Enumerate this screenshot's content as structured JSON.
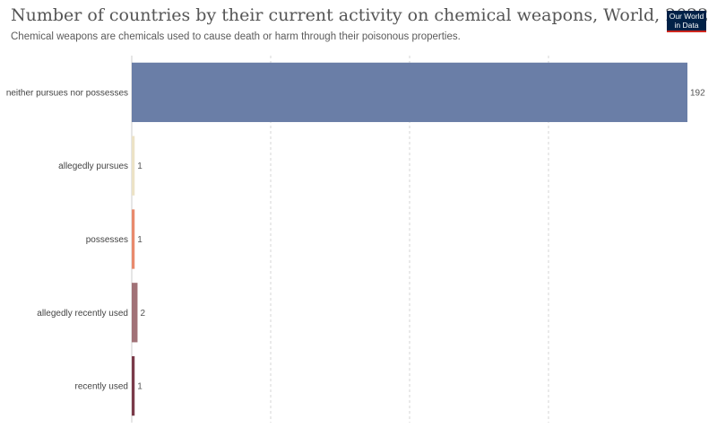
{
  "header": {
    "title": "Number of countries by their current activity on chemical weapons, World, 2022",
    "subtitle": "Chemical weapons are chemicals used to cause death or harm through their poisonous properties."
  },
  "logo": {
    "line1": "Our World",
    "line2": "in Data"
  },
  "chart_data": {
    "type": "bar",
    "orientation": "horizontal",
    "title": "Number of countries by their current activity on chemical weapons, World, 2022",
    "subtitle": "Chemical weapons are chemicals used to cause death or harm through their poisonous properties.",
    "categories": [
      "neither pursues nor possesses",
      "allegedly pursues",
      "possesses",
      "allegedly recently used",
      "recently used"
    ],
    "values": [
      192,
      1,
      1,
      2,
      1
    ],
    "colors": [
      "#6a7ea7",
      "#ece2c6",
      "#e88a6d",
      "#a17277",
      "#7a3a49"
    ],
    "xlim": [
      0,
      192
    ],
    "grid": "vertical-dashed",
    "data_labels": true
  }
}
